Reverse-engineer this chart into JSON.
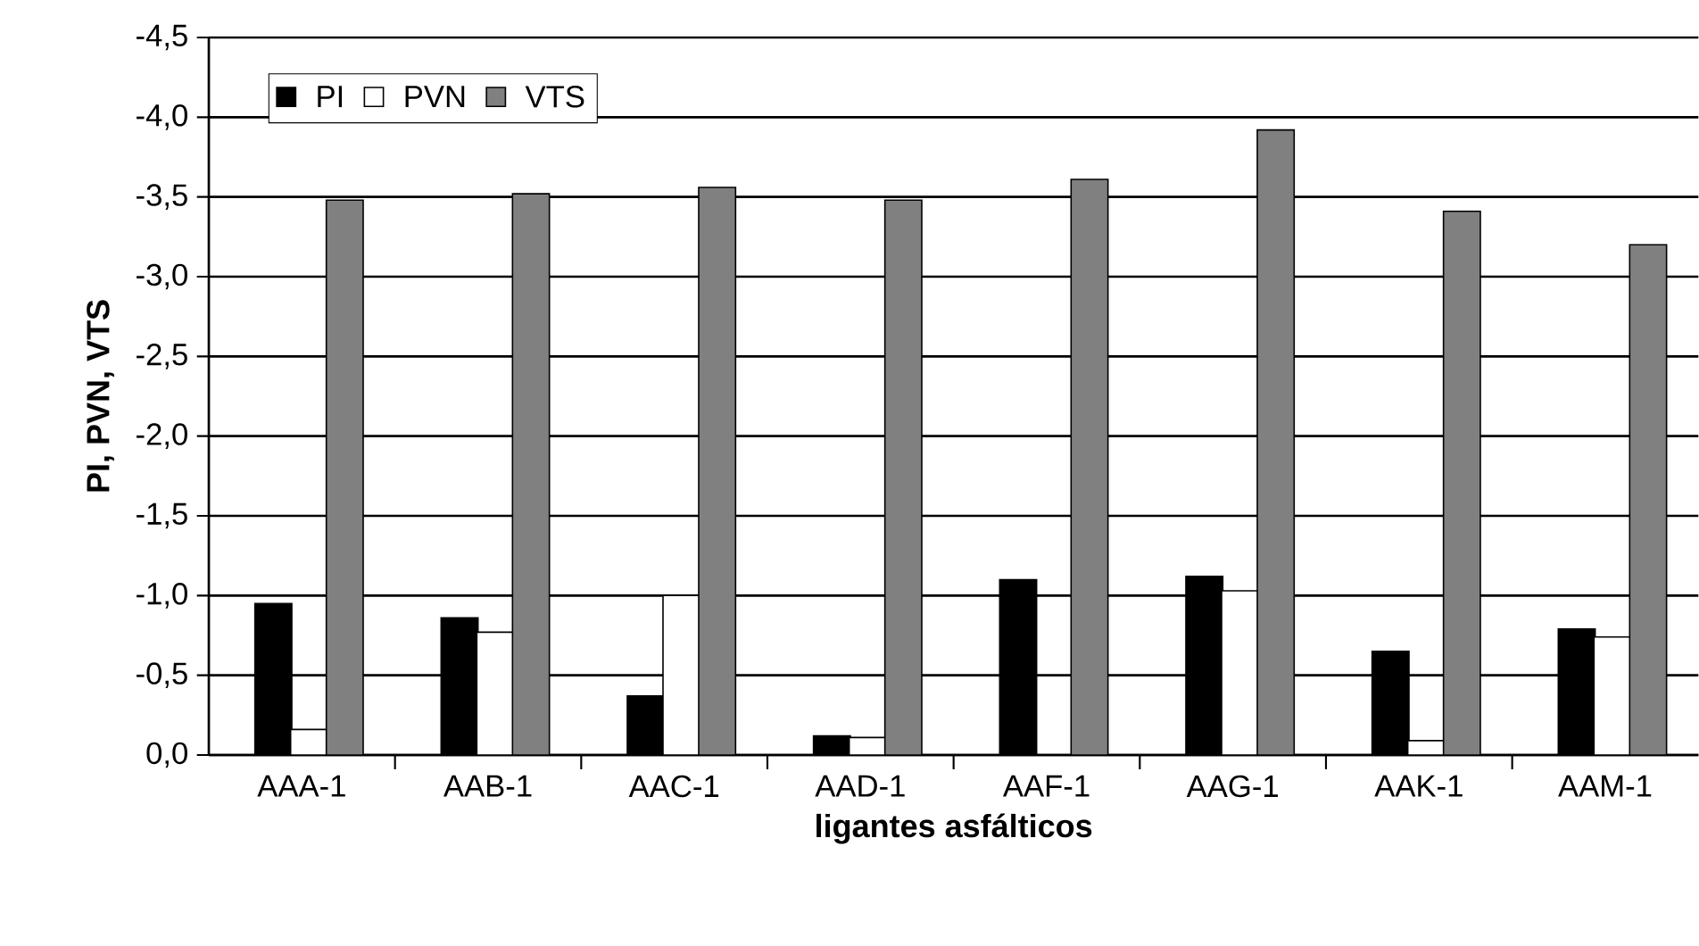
{
  "chart_data": {
    "type": "bar",
    "xlabel": "ligantes asfálticos",
    "ylabel": "PI, PVN, VTS",
    "categories": [
      "AAA-1",
      "AAB-1",
      "AAC-1",
      "AAD-1",
      "AAF-1",
      "AAG-1",
      "AAK-1",
      "AAM-1"
    ],
    "series": [
      {
        "name": "PI",
        "color": "#000000",
        "values": [
          -0.95,
          -0.86,
          -0.37,
          -0.12,
          -1.1,
          -1.12,
          -0.65,
          -0.79
        ]
      },
      {
        "name": "PVN",
        "color": "#ffffff",
        "values": [
          -0.16,
          -0.77,
          -1.0,
          -0.11,
          null,
          -1.03,
          -0.09,
          -0.74
        ]
      },
      {
        "name": "VTS",
        "color": "#808080",
        "values": [
          -3.48,
          -3.52,
          -3.56,
          -3.48,
          -3.61,
          -3.92,
          -3.41,
          -3.2
        ]
      }
    ],
    "ylim": [
      0,
      -4.5
    ],
    "yticks": [
      {
        "value": 0,
        "label": "0,0"
      },
      {
        "value": -0.5,
        "label": "-0,5"
      },
      {
        "value": -1,
        "label": "-1,0"
      },
      {
        "value": -1.5,
        "label": "-1,5"
      },
      {
        "value": -2,
        "label": "-2,0"
      },
      {
        "value": -2.5,
        "label": "-2,5"
      },
      {
        "value": -3,
        "label": "-3,0"
      },
      {
        "value": -3.5,
        "label": "-3,5"
      },
      {
        "value": -4,
        "label": "-4,0"
      },
      {
        "value": -4.5,
        "label": "-4,5"
      }
    ],
    "grid": "y",
    "legend": "top left"
  }
}
